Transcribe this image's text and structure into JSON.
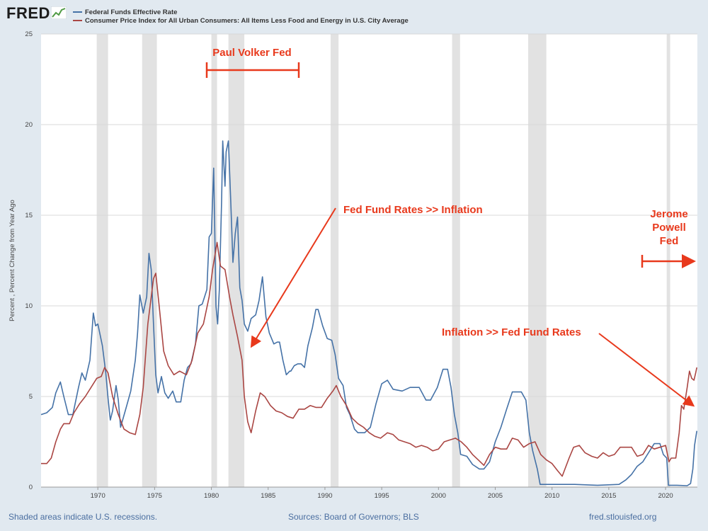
{
  "header": {
    "logo_text": "FRED",
    "series_labels": [
      "Federal Funds Effective Rate",
      "Consumer Price Index for All Urban Consumers: All Items Less Food and Energy in U.S. City Average"
    ]
  },
  "colors": {
    "fed": "#4572a7",
    "cpi": "#aa4643",
    "annotation": "#e8391c",
    "recession": "#e2e2e2",
    "background": "#e1e9f0"
  },
  "footer": {
    "note": "Shaded areas indicate U.S. recessions.",
    "sources": "Sources: Board of Governors; BLS",
    "site": "fred.stlouisfed.org"
  },
  "chart_data": {
    "type": "line",
    "title": "",
    "ylabel": "Percent , Percent Change from Year Ago",
    "xlim": [
      1965.0,
      2022.8
    ],
    "ylim": [
      0,
      25
    ],
    "y_ticks": [
      0,
      5,
      10,
      15,
      20,
      25
    ],
    "x_ticks": [
      1970,
      1975,
      1980,
      1985,
      1990,
      1995,
      2000,
      2005,
      2010,
      2015,
      2020
    ],
    "recessions": [
      [
        1969.9,
        1970.9
      ],
      [
        1973.9,
        1975.2
      ],
      [
        1980.0,
        1980.5
      ],
      [
        1981.5,
        1982.9
      ],
      [
        1990.5,
        1991.2
      ],
      [
        2001.2,
        2001.9
      ],
      [
        2007.9,
        2009.5
      ],
      [
        2020.1,
        2020.4
      ]
    ],
    "series": [
      {
        "name": "Federal Funds Effective Rate",
        "color": "#4572a7",
        "points": [
          [
            1965.0,
            4.0
          ],
          [
            1965.5,
            4.1
          ],
          [
            1966.0,
            4.4
          ],
          [
            1966.3,
            5.2
          ],
          [
            1966.7,
            5.8
          ],
          [
            1967.0,
            5.0
          ],
          [
            1967.4,
            4.0
          ],
          [
            1967.8,
            4.0
          ],
          [
            1968.3,
            5.5
          ],
          [
            1968.6,
            6.3
          ],
          [
            1968.9,
            5.9
          ],
          [
            1969.3,
            7.0
          ],
          [
            1969.6,
            9.6
          ],
          [
            1969.8,
            8.9
          ],
          [
            1970.0,
            9.0
          ],
          [
            1970.4,
            7.8
          ],
          [
            1970.7,
            6.3
          ],
          [
            1970.9,
            4.9
          ],
          [
            1971.1,
            3.7
          ],
          [
            1971.3,
            4.2
          ],
          [
            1971.6,
            5.6
          ],
          [
            1971.8,
            4.8
          ],
          [
            1972.0,
            3.3
          ],
          [
            1972.5,
            4.4
          ],
          [
            1972.9,
            5.3
          ],
          [
            1973.3,
            7.0
          ],
          [
            1973.5,
            8.5
          ],
          [
            1973.7,
            10.6
          ],
          [
            1974.0,
            9.6
          ],
          [
            1974.3,
            10.5
          ],
          [
            1974.5,
            12.9
          ],
          [
            1974.7,
            12.0
          ],
          [
            1974.9,
            9.0
          ],
          [
            1975.1,
            6.2
          ],
          [
            1975.3,
            5.2
          ],
          [
            1975.6,
            6.1
          ],
          [
            1975.9,
            5.2
          ],
          [
            1976.2,
            4.9
          ],
          [
            1976.6,
            5.3
          ],
          [
            1976.9,
            4.7
          ],
          [
            1977.3,
            4.7
          ],
          [
            1977.6,
            5.9
          ],
          [
            1977.9,
            6.6
          ],
          [
            1978.2,
            6.8
          ],
          [
            1978.6,
            7.9
          ],
          [
            1978.9,
            10.0
          ],
          [
            1979.2,
            10.1
          ],
          [
            1979.6,
            10.9
          ],
          [
            1979.8,
            13.8
          ],
          [
            1980.0,
            14.0
          ],
          [
            1980.2,
            17.6
          ],
          [
            1980.3,
            14.0
          ],
          [
            1980.4,
            10.0
          ],
          [
            1980.55,
            9.0
          ],
          [
            1980.7,
            10.9
          ],
          [
            1980.9,
            15.8
          ],
          [
            1981.0,
            19.1
          ],
          [
            1981.2,
            16.6
          ],
          [
            1981.3,
            18.5
          ],
          [
            1981.5,
            19.1
          ],
          [
            1981.7,
            15.9
          ],
          [
            1981.9,
            12.4
          ],
          [
            1982.1,
            14.0
          ],
          [
            1982.3,
            14.9
          ],
          [
            1982.5,
            11.0
          ],
          [
            1982.7,
            10.3
          ],
          [
            1982.9,
            9.0
          ],
          [
            1983.2,
            8.6
          ],
          [
            1983.5,
            9.3
          ],
          [
            1983.9,
            9.5
          ],
          [
            1984.2,
            10.3
          ],
          [
            1984.5,
            11.6
          ],
          [
            1984.8,
            9.4
          ],
          [
            1985.1,
            8.5
          ],
          [
            1985.5,
            7.9
          ],
          [
            1985.8,
            8.0
          ],
          [
            1986.0,
            8.0
          ],
          [
            1986.3,
            7.0
          ],
          [
            1986.6,
            6.2
          ],
          [
            1986.9,
            6.4
          ],
          [
            1987.0,
            6.4
          ],
          [
            1987.3,
            6.7
          ],
          [
            1987.6,
            6.8
          ],
          [
            1987.9,
            6.8
          ],
          [
            1988.2,
            6.6
          ],
          [
            1988.5,
            7.8
          ],
          [
            1988.9,
            8.8
          ],
          [
            1989.2,
            9.8
          ],
          [
            1989.4,
            9.8
          ],
          [
            1989.8,
            8.9
          ],
          [
            1990.2,
            8.2
          ],
          [
            1990.6,
            8.1
          ],
          [
            1990.9,
            7.3
          ],
          [
            1991.2,
            6.0
          ],
          [
            1991.6,
            5.6
          ],
          [
            1991.9,
            4.4
          ],
          [
            1992.2,
            4.0
          ],
          [
            1992.6,
            3.2
          ],
          [
            1992.9,
            3.0
          ],
          [
            1993.5,
            3.0
          ],
          [
            1994.0,
            3.3
          ],
          [
            1994.5,
            4.6
          ],
          [
            1995.0,
            5.7
          ],
          [
            1995.5,
            5.9
          ],
          [
            1996.0,
            5.4
          ],
          [
            1996.8,
            5.3
          ],
          [
            1997.5,
            5.5
          ],
          [
            1998.3,
            5.5
          ],
          [
            1998.9,
            4.8
          ],
          [
            1999.3,
            4.8
          ],
          [
            1999.9,
            5.5
          ],
          [
            2000.4,
            6.5
          ],
          [
            2000.8,
            6.5
          ],
          [
            2001.1,
            5.5
          ],
          [
            2001.4,
            4.0
          ],
          [
            2001.7,
            3.0
          ],
          [
            2001.95,
            1.8
          ],
          [
            2002.5,
            1.7
          ],
          [
            2003.0,
            1.25
          ],
          [
            2003.6,
            1.0
          ],
          [
            2004.0,
            1.0
          ],
          [
            2004.5,
            1.4
          ],
          [
            2005.0,
            2.5
          ],
          [
            2005.5,
            3.3
          ],
          [
            2006.0,
            4.3
          ],
          [
            2006.5,
            5.25
          ],
          [
            2007.3,
            5.25
          ],
          [
            2007.7,
            4.8
          ],
          [
            2008.0,
            3.0
          ],
          [
            2008.3,
            2.0
          ],
          [
            2008.7,
            1.0
          ],
          [
            2008.95,
            0.15
          ],
          [
            2010.0,
            0.15
          ],
          [
            2012.0,
            0.15
          ],
          [
            2014.0,
            0.1
          ],
          [
            2015.9,
            0.15
          ],
          [
            2016.5,
            0.4
          ],
          [
            2017.0,
            0.7
          ],
          [
            2017.5,
            1.15
          ],
          [
            2018.0,
            1.4
          ],
          [
            2018.5,
            1.9
          ],
          [
            2019.0,
            2.4
          ],
          [
            2019.5,
            2.4
          ],
          [
            2019.8,
            1.8
          ],
          [
            2020.1,
            1.6
          ],
          [
            2020.25,
            0.1
          ],
          [
            2021.0,
            0.1
          ],
          [
            2021.9,
            0.08
          ],
          [
            2022.2,
            0.2
          ],
          [
            2022.4,
            1.0
          ],
          [
            2022.55,
            2.3
          ],
          [
            2022.75,
            3.1
          ]
        ]
      },
      {
        "name": "Consumer Price Index for All Urban Consumers: All Items Less Food and Energy in U.S. City Average",
        "color": "#aa4643",
        "points": [
          [
            1965.0,
            1.3
          ],
          [
            1965.5,
            1.3
          ],
          [
            1965.9,
            1.6
          ],
          [
            1966.3,
            2.5
          ],
          [
            1966.7,
            3.2
          ],
          [
            1967.0,
            3.5
          ],
          [
            1967.5,
            3.5
          ],
          [
            1967.9,
            4.1
          ],
          [
            1968.4,
            4.6
          ],
          [
            1968.9,
            5.0
          ],
          [
            1969.4,
            5.5
          ],
          [
            1969.9,
            6.0
          ],
          [
            1970.3,
            6.1
          ],
          [
            1970.6,
            6.6
          ],
          [
            1970.9,
            6.3
          ],
          [
            1971.3,
            5.0
          ],
          [
            1971.8,
            4.0
          ],
          [
            1972.3,
            3.2
          ],
          [
            1972.8,
            3.0
          ],
          [
            1973.3,
            2.9
          ],
          [
            1973.7,
            4.0
          ],
          [
            1974.0,
            5.5
          ],
          [
            1974.4,
            9.0
          ],
          [
            1974.7,
            10.5
          ],
          [
            1974.9,
            11.5
          ],
          [
            1975.1,
            11.8
          ],
          [
            1975.4,
            10.0
          ],
          [
            1975.8,
            7.5
          ],
          [
            1976.2,
            6.7
          ],
          [
            1976.7,
            6.2
          ],
          [
            1977.2,
            6.4
          ],
          [
            1977.8,
            6.2
          ],
          [
            1978.3,
            7.0
          ],
          [
            1978.8,
            8.5
          ],
          [
            1979.3,
            9.0
          ],
          [
            1979.8,
            10.5
          ],
          [
            1980.1,
            12.0
          ],
          [
            1980.5,
            13.5
          ],
          [
            1980.8,
            12.2
          ],
          [
            1981.2,
            12.0
          ],
          [
            1981.6,
            10.5
          ],
          [
            1981.9,
            9.5
          ],
          [
            1982.3,
            8.3
          ],
          [
            1982.7,
            7.0
          ],
          [
            1982.9,
            5.0
          ],
          [
            1983.2,
            3.6
          ],
          [
            1983.5,
            3.0
          ],
          [
            1983.9,
            4.2
          ],
          [
            1984.3,
            5.2
          ],
          [
            1984.7,
            5.0
          ],
          [
            1985.2,
            4.5
          ],
          [
            1985.7,
            4.2
          ],
          [
            1986.2,
            4.1
          ],
          [
            1986.7,
            3.9
          ],
          [
            1987.2,
            3.8
          ],
          [
            1987.7,
            4.3
          ],
          [
            1988.2,
            4.3
          ],
          [
            1988.7,
            4.5
          ],
          [
            1989.2,
            4.4
          ],
          [
            1989.7,
            4.4
          ],
          [
            1990.2,
            4.9
          ],
          [
            1990.7,
            5.3
          ],
          [
            1991.0,
            5.6
          ],
          [
            1991.4,
            5.0
          ],
          [
            1991.9,
            4.5
          ],
          [
            1992.4,
            3.8
          ],
          [
            1992.9,
            3.5
          ],
          [
            1993.4,
            3.3
          ],
          [
            1993.9,
            3.0
          ],
          [
            1994.4,
            2.8
          ],
          [
            1994.9,
            2.7
          ],
          [
            1995.5,
            3.0
          ],
          [
            1996.0,
            2.9
          ],
          [
            1996.5,
            2.6
          ],
          [
            1997.0,
            2.5
          ],
          [
            1997.5,
            2.4
          ],
          [
            1998.0,
            2.2
          ],
          [
            1998.5,
            2.3
          ],
          [
            1999.0,
            2.2
          ],
          [
            1999.5,
            2.0
          ],
          [
            2000.0,
            2.1
          ],
          [
            2000.5,
            2.5
          ],
          [
            2001.0,
            2.6
          ],
          [
            2001.5,
            2.7
          ],
          [
            2002.0,
            2.5
          ],
          [
            2002.5,
            2.2
          ],
          [
            2003.0,
            1.8
          ],
          [
            2003.5,
            1.5
          ],
          [
            2004.0,
            1.2
          ],
          [
            2004.5,
            1.8
          ],
          [
            2005.0,
            2.2
          ],
          [
            2005.5,
            2.1
          ],
          [
            2006.0,
            2.1
          ],
          [
            2006.5,
            2.7
          ],
          [
            2007.0,
            2.6
          ],
          [
            2007.5,
            2.2
          ],
          [
            2008.0,
            2.4
          ],
          [
            2008.5,
            2.5
          ],
          [
            2009.0,
            1.8
          ],
          [
            2009.5,
            1.5
          ],
          [
            2010.0,
            1.3
          ],
          [
            2010.5,
            0.9
          ],
          [
            2010.9,
            0.6
          ],
          [
            2011.5,
            1.6
          ],
          [
            2011.9,
            2.2
          ],
          [
            2012.4,
            2.3
          ],
          [
            2012.9,
            1.9
          ],
          [
            2013.5,
            1.7
          ],
          [
            2014.0,
            1.6
          ],
          [
            2014.5,
            1.9
          ],
          [
            2015.0,
            1.7
          ],
          [
            2015.5,
            1.8
          ],
          [
            2016.0,
            2.2
          ],
          [
            2016.5,
            2.2
          ],
          [
            2017.0,
            2.2
          ],
          [
            2017.5,
            1.7
          ],
          [
            2018.0,
            1.8
          ],
          [
            2018.5,
            2.3
          ],
          [
            2019.0,
            2.1
          ],
          [
            2019.5,
            2.2
          ],
          [
            2020.0,
            2.3
          ],
          [
            2020.3,
            1.4
          ],
          [
            2020.5,
            1.6
          ],
          [
            2020.9,
            1.6
          ],
          [
            2021.2,
            3.0
          ],
          [
            2021.4,
            4.5
          ],
          [
            2021.6,
            4.3
          ],
          [
            2021.9,
            5.5
          ],
          [
            2022.1,
            6.4
          ],
          [
            2022.3,
            6.0
          ],
          [
            2022.5,
            5.9
          ],
          [
            2022.65,
            6.3
          ],
          [
            2022.75,
            6.6
          ]
        ]
      }
    ],
    "annotations": {
      "volker": "Paul Volker Fed",
      "rates_over_inflation": "Fed Fund Rates >> Inflation",
      "inflation_over_rates": "Inflation >> Fed Fund Rates",
      "powell": [
        "Jerome",
        "Powell",
        "Fed"
      ]
    }
  }
}
